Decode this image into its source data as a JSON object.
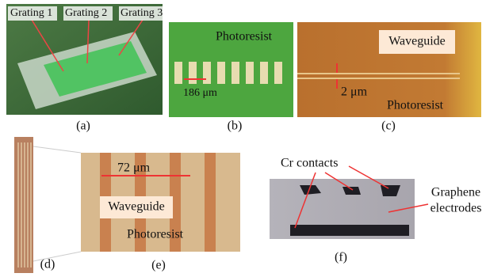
{
  "panels": [
    {
      "label": "(a)",
      "annotations": [
        "Grating 1",
        "Grating 2",
        "Grating 3"
      ]
    },
    {
      "label": "(b)",
      "annotations": [
        "Photoresist",
        "186 μm"
      ]
    },
    {
      "label": "(c)",
      "annotations": [
        "Waveguide",
        "2 μm",
        "Photoresist"
      ]
    },
    {
      "label": "(d)"
    },
    {
      "label": "(e)",
      "annotations": [
        "72 μm",
        "Waveguide",
        "Photoresist"
      ]
    },
    {
      "label": "(f)",
      "annotations": [
        "Cr contacts",
        "Graphene",
        "electrodes"
      ]
    }
  ]
}
